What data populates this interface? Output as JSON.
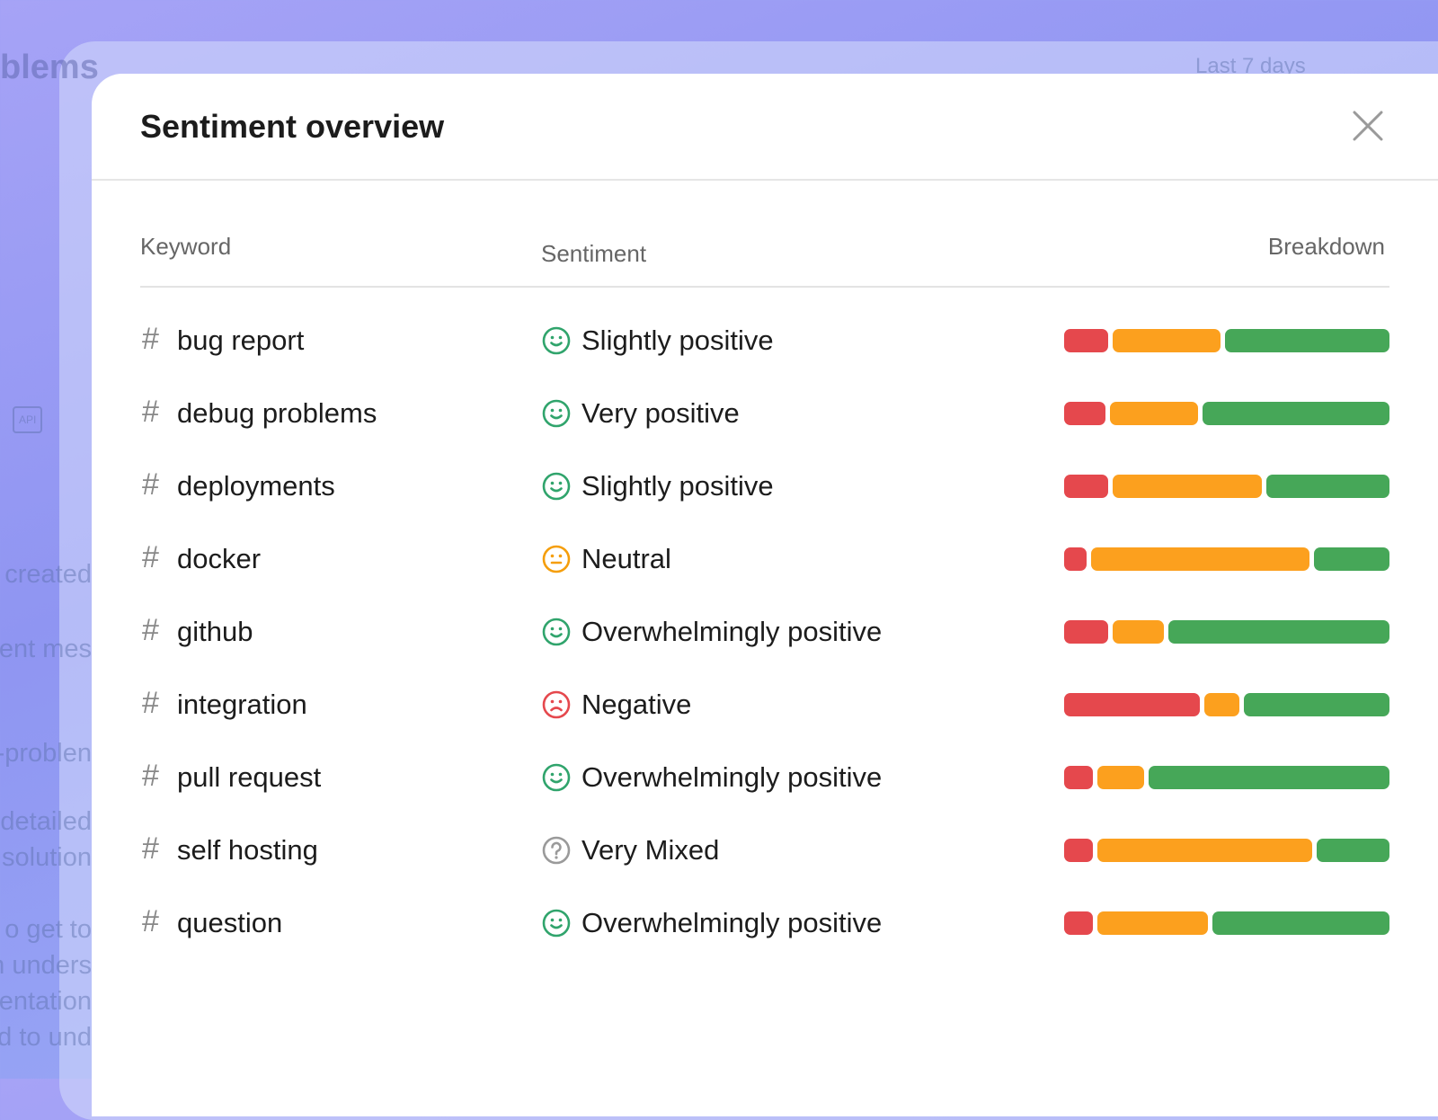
{
  "background": {
    "title_fragment": "blems",
    "range": "Last 7 days",
    "badge": "API",
    "fragments": [
      "created",
      "ent mes",
      "-problen",
      "detailed",
      "solution",
      "o get to",
      "n unders",
      "nentation",
      "ed to und"
    ]
  },
  "modal": {
    "title": "Sentiment overview",
    "table": {
      "columns": [
        "Keyword",
        "Sentiment",
        "Breakdown"
      ],
      "hash": "#",
      "breakdown_colors": [
        "#e5484d",
        "#fca01e",
        "#46a758"
      ],
      "rows": [
        {
          "keyword": "bug report",
          "sentiment": "Slightly positive",
          "icon": "smile",
          "icon_color": "#30a46c",
          "breakdown": [
            14,
            34,
            52
          ]
        },
        {
          "keyword": "debug problems",
          "sentiment": "Very positive",
          "icon": "smile",
          "icon_color": "#30a46c",
          "breakdown": [
            13,
            28,
            59
          ]
        },
        {
          "keyword": "deployments",
          "sentiment": "Slightly positive",
          "icon": "smile",
          "icon_color": "#30a46c",
          "breakdown": [
            14,
            47,
            39
          ]
        },
        {
          "keyword": "docker",
          "sentiment": "Neutral",
          "icon": "neutral",
          "icon_color": "#f59e0b",
          "breakdown": [
            7,
            69,
            24
          ]
        },
        {
          "keyword": "github",
          "sentiment": "Overwhelmingly positive",
          "icon": "smile",
          "icon_color": "#30a46c",
          "breakdown": [
            14,
            16,
            70
          ]
        },
        {
          "keyword": "integration",
          "sentiment": "Negative",
          "icon": "frown",
          "icon_color": "#e5484d",
          "breakdown": [
            43,
            11,
            46
          ]
        },
        {
          "keyword": "pull request",
          "sentiment": "Overwhelmingly positive",
          "icon": "smile",
          "icon_color": "#30a46c",
          "breakdown": [
            9,
            15,
            76
          ]
        },
        {
          "keyword": "self hosting",
          "sentiment": "Very Mixed",
          "icon": "question",
          "icon_color": "#9a9a9a",
          "breakdown": [
            9,
            68,
            23
          ]
        },
        {
          "keyword": "question",
          "sentiment": "Overwhelmingly positive",
          "icon": "smile",
          "icon_color": "#30a46c",
          "breakdown": [
            9,
            35,
            56
          ]
        }
      ]
    }
  }
}
